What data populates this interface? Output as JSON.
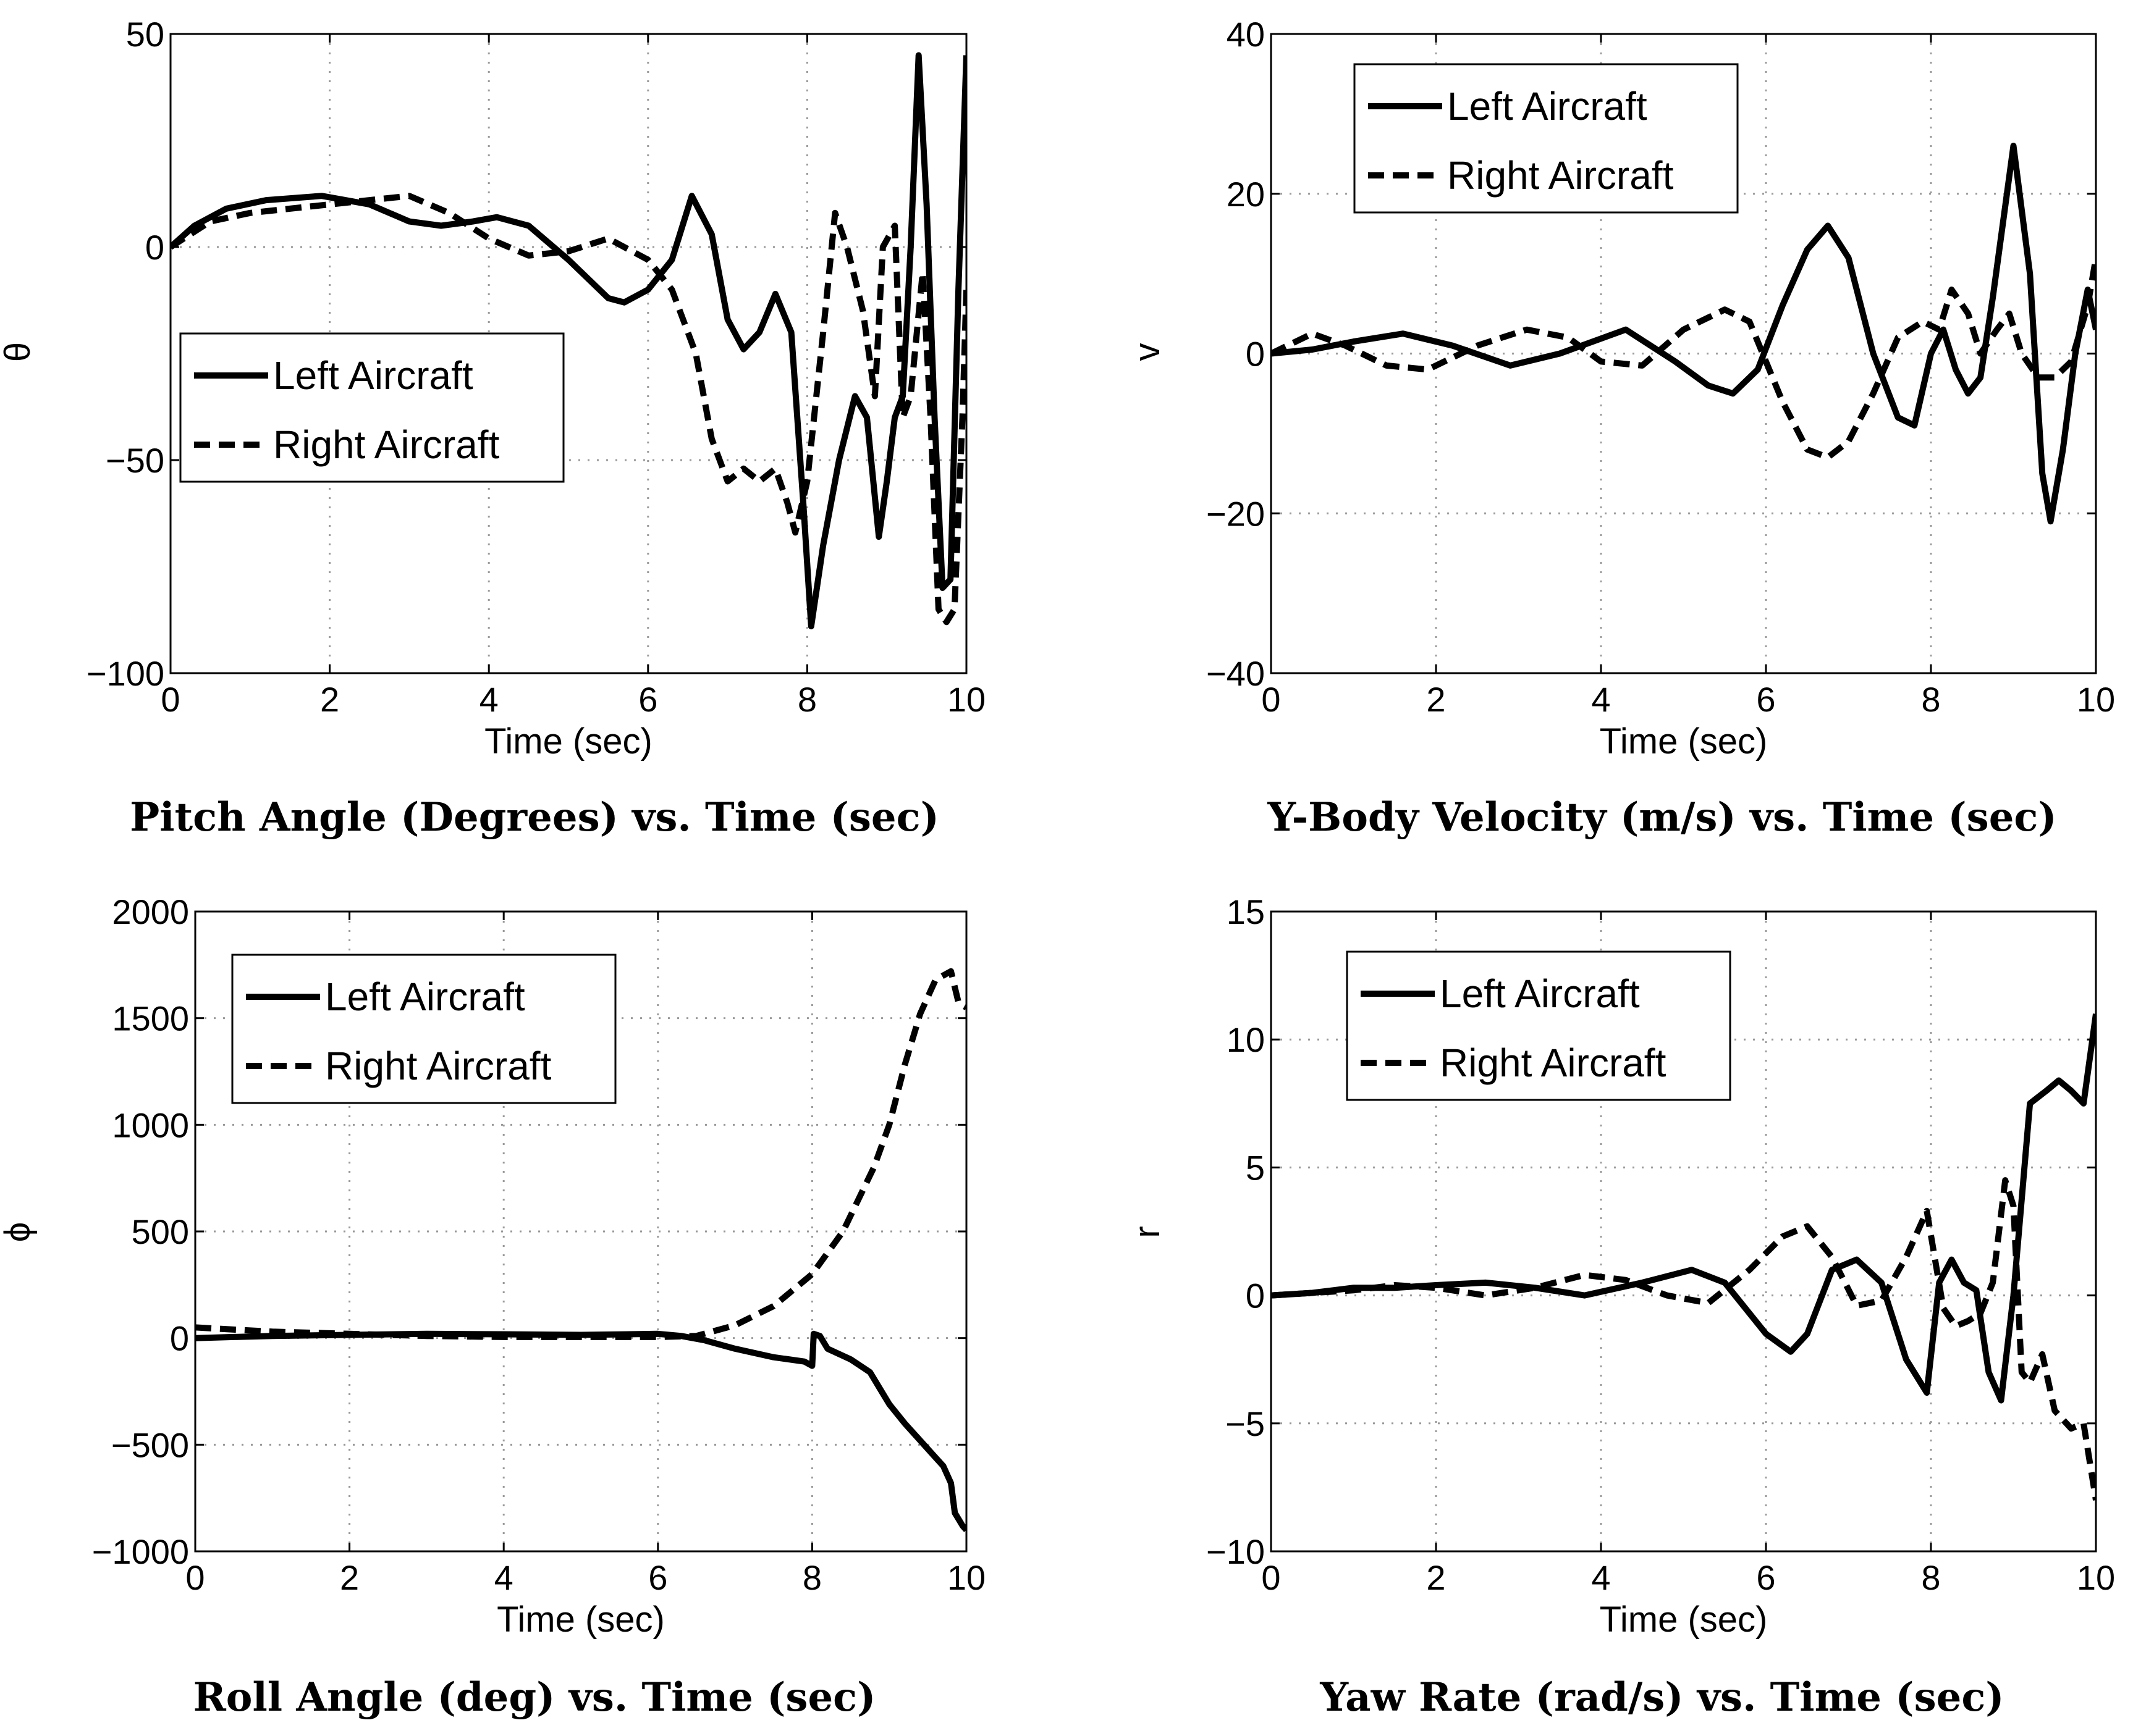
{
  "chart_data": [
    {
      "type": "line",
      "title": "Pitch Angle (Degrees) vs. Time (sec)",
      "xlabel": "Time (sec)",
      "ylabel": "θ",
      "xlim": [
        0,
        10
      ],
      "ylim": [
        -100,
        50
      ],
      "xticks": [
        0,
        2,
        4,
        6,
        8,
        10
      ],
      "yticks": [
        -100,
        -50,
        0,
        50
      ],
      "ytick_labels": [
        "−100",
        "−50",
        "0",
        "50"
      ],
      "legend_position": "middle-left",
      "series": [
        {
          "name": "Left Aircraft",
          "style": "solid",
          "x": [
            0,
            0.3,
            0.7,
            1.2,
            1.9,
            2.5,
            3.0,
            3.4,
            3.8,
            4.1,
            4.5,
            5.0,
            5.5,
            5.7,
            6.0,
            6.3,
            6.55,
            6.8,
            7.0,
            7.2,
            7.4,
            7.6,
            7.8,
            7.95,
            8.05,
            8.2,
            8.4,
            8.6,
            8.75,
            8.9,
            9.0,
            9.1,
            9.2,
            9.3,
            9.4,
            9.5,
            9.6,
            9.7,
            9.8,
            9.9,
            10.0
          ],
          "y": [
            0,
            5,
            9,
            11,
            12,
            10,
            6,
            5,
            6,
            7,
            5,
            -3,
            -12,
            -13,
            -10,
            -3,
            12,
            3,
            -17,
            -24,
            -20,
            -11,
            -20,
            -60,
            -89,
            -70,
            -50,
            -35,
            -40,
            -68,
            -55,
            -40,
            -35,
            0,
            45,
            10,
            -40,
            -80,
            -78,
            -10,
            45
          ]
        },
        {
          "name": "Right Aircraft",
          "style": "dashed",
          "x": [
            0,
            0.5,
            1.0,
            1.5,
            2.0,
            2.5,
            3.0,
            3.5,
            4.0,
            4.5,
            5.0,
            5.5,
            6.0,
            6.3,
            6.6,
            6.8,
            7.0,
            7.2,
            7.4,
            7.6,
            7.75,
            7.85,
            8.0,
            8.2,
            8.35,
            8.5,
            8.7,
            8.85,
            8.95,
            9.1,
            9.2,
            9.3,
            9.45,
            9.55,
            9.65,
            9.75,
            9.85,
            9.95,
            10.0
          ],
          "y": [
            0,
            6,
            8,
            9,
            10,
            11,
            12,
            8,
            2,
            -2,
            -1,
            2,
            -3,
            -10,
            -25,
            -45,
            -55,
            -52,
            -55,
            -52,
            -60,
            -67,
            -55,
            -20,
            8,
            0,
            -15,
            -35,
            0,
            5,
            -40,
            -35,
            -6,
            -40,
            -85,
            -88,
            -85,
            -40,
            -10
          ]
        }
      ]
    },
    {
      "type": "line",
      "title": "Y-Body Velocity (m/s) vs. Time (sec)",
      "xlabel": "Time (sec)",
      "ylabel": "v",
      "xlim": [
        0,
        10
      ],
      "ylim": [
        -40,
        40
      ],
      "xticks": [
        0,
        2,
        4,
        6,
        8,
        10
      ],
      "yticks": [
        -40,
        -20,
        0,
        20,
        40
      ],
      "ytick_labels": [
        "−40",
        "−20",
        "0",
        "20",
        "40"
      ],
      "legend_position": "top-left",
      "series": [
        {
          "name": "Left Aircraft",
          "style": "solid",
          "x": [
            0,
            0.5,
            1.0,
            1.6,
            2.2,
            2.9,
            3.5,
            4.3,
            4.9,
            5.3,
            5.6,
            5.9,
            6.2,
            6.5,
            6.75,
            7.0,
            7.3,
            7.6,
            7.8,
            8.0,
            8.15,
            8.3,
            8.45,
            8.6,
            8.75,
            9.0,
            9.2,
            9.35,
            9.45,
            9.6,
            9.75,
            9.9,
            10.0
          ],
          "y": [
            0,
            0.5,
            1.5,
            2.5,
            1,
            -1.5,
            0,
            3,
            -1,
            -4,
            -5,
            -2,
            6,
            13,
            16,
            12,
            0,
            -8,
            -9,
            0,
            3,
            -2,
            -5,
            -3,
            7,
            26,
            10,
            -15,
            -21,
            -12,
            0,
            8,
            3
          ]
        },
        {
          "name": "Right Aircraft",
          "style": "dashed",
          "x": [
            0,
            0.5,
            0.9,
            1.4,
            1.9,
            2.5,
            3.1,
            3.6,
            4.0,
            4.5,
            5.0,
            5.5,
            5.8,
            6.2,
            6.5,
            6.75,
            7.0,
            7.3,
            7.6,
            7.9,
            8.1,
            8.25,
            8.45,
            8.6,
            8.8,
            8.95,
            9.1,
            9.3,
            9.5,
            9.7,
            9.9,
            10.0
          ],
          "y": [
            0,
            2.5,
            1,
            -1.5,
            -2,
            1,
            3,
            2,
            -1,
            -1.5,
            3,
            5.5,
            4,
            -6,
            -12,
            -13,
            -11,
            -5,
            2,
            4,
            3,
            8,
            5,
            0,
            3,
            5,
            0,
            -3,
            -3,
            -1,
            6,
            12
          ]
        }
      ]
    },
    {
      "type": "line",
      "title": "Roll Angle (deg) vs. Time (sec)",
      "xlabel": "Time (sec)",
      "ylabel": "ϕ",
      "xlim": [
        0,
        10
      ],
      "ylim": [
        -1000,
        2000
      ],
      "xticks": [
        0,
        2,
        4,
        6,
        8,
        10
      ],
      "yticks": [
        -1000,
        -500,
        0,
        500,
        1000,
        1500,
        2000
      ],
      "ytick_labels": [
        "−1000",
        "−500",
        "0",
        "500",
        "1000",
        "1500",
        "2000"
      ],
      "legend_position": "top-left",
      "series": [
        {
          "name": "Left Aircraft",
          "style": "solid",
          "x": [
            0,
            0.5,
            1,
            2,
            3,
            4,
            5,
            6,
            6.3,
            6.6,
            7.0,
            7.5,
            7.9,
            8.0,
            8.02,
            8.1,
            8.2,
            8.5,
            8.75,
            8.9,
            9.0,
            9.2,
            9.4,
            9.6,
            9.7,
            9.8,
            9.85,
            9.95,
            10.0
          ],
          "y": [
            0,
            5,
            10,
            15,
            20,
            18,
            15,
            20,
            10,
            -10,
            -50,
            -90,
            -110,
            -130,
            20,
            10,
            -50,
            -100,
            -160,
            -250,
            -310,
            -400,
            -480,
            -560,
            -600,
            -680,
            -820,
            -880,
            -900
          ]
        },
        {
          "name": "Right Aircraft",
          "style": "dashed",
          "x": [
            0,
            0.5,
            1,
            2,
            3,
            4,
            5,
            6,
            6.5,
            7.0,
            7.5,
            8.0,
            8.4,
            8.8,
            9.0,
            9.2,
            9.4,
            9.6,
            9.8,
            9.9,
            10.0
          ],
          "y": [
            50,
            40,
            30,
            20,
            10,
            5,
            5,
            5,
            10,
            60,
            150,
            300,
            500,
            800,
            1000,
            1280,
            1520,
            1680,
            1720,
            1570,
            1550
          ]
        }
      ]
    },
    {
      "type": "line",
      "title": "Yaw Rate (rad/s) vs. Time (sec)",
      "xlabel": "Time (sec)",
      "ylabel": "r",
      "xlim": [
        0,
        10
      ],
      "ylim": [
        -10,
        15
      ],
      "xticks": [
        0,
        2,
        4,
        6,
        8,
        10
      ],
      "yticks": [
        -10,
        -5,
        0,
        5,
        10,
        15
      ],
      "ytick_labels": [
        "−10",
        "−5",
        "0",
        "5",
        "10",
        "15"
      ],
      "legend_position": "top-left",
      "series": [
        {
          "name": "Left Aircraft",
          "style": "solid",
          "x": [
            0,
            0.5,
            1.0,
            1.5,
            2.0,
            2.6,
            3.2,
            3.8,
            4.5,
            5.1,
            5.5,
            6.0,
            6.3,
            6.5,
            6.8,
            7.1,
            7.4,
            7.7,
            7.95,
            8.1,
            8.25,
            8.4,
            8.55,
            8.7,
            8.85,
            9.0,
            9.2,
            9.4,
            9.55,
            9.7,
            9.85,
            10.0
          ],
          "y": [
            0,
            0.1,
            0.3,
            0.3,
            0.4,
            0.5,
            0.3,
            0,
            0.5,
            1.0,
            0.5,
            -1.5,
            -2.2,
            -1.5,
            1.0,
            1.4,
            0.5,
            -2.5,
            -3.8,
            0.5,
            1.4,
            0.5,
            0.2,
            -3,
            -4.1,
            0,
            7.5,
            8.0,
            8.4,
            8.0,
            7.5,
            11
          ]
        },
        {
          "name": "Right Aircraft",
          "style": "dashed",
          "x": [
            0,
            0.5,
            1.0,
            1.5,
            2.0,
            2.6,
            3.2,
            3.8,
            4.3,
            4.8,
            5.3,
            5.8,
            6.2,
            6.5,
            6.8,
            7.1,
            7.4,
            7.7,
            7.95,
            8.15,
            8.3,
            8.45,
            8.6,
            8.75,
            8.9,
            9.0,
            9.1,
            9.2,
            9.35,
            9.5,
            9.7,
            9.85,
            10.0
          ],
          "y": [
            0,
            0.1,
            0.2,
            0.4,
            0.3,
            0,
            0.3,
            0.8,
            0.6,
            0,
            -0.3,
            1.0,
            2.3,
            2.7,
            1.5,
            -0.4,
            -0.2,
            1.5,
            3.3,
            -0.5,
            -1.2,
            -1,
            -0.7,
            0.5,
            4.5,
            3.5,
            -3.0,
            -3.4,
            -2.3,
            -4.5,
            -5.2,
            -5.0,
            -8
          ]
        }
      ]
    }
  ]
}
